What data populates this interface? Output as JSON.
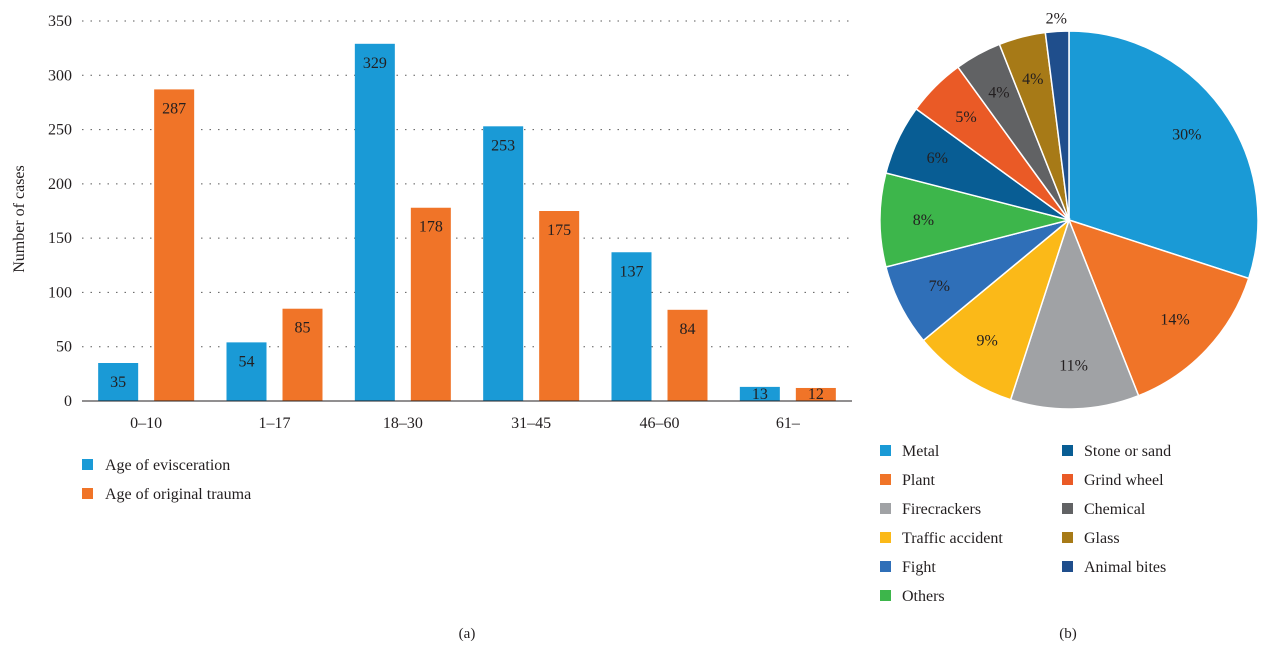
{
  "chart_data": [
    {
      "type": "bar",
      "panel_label": "(a)",
      "ylabel": "Number of cases",
      "xlabel": "",
      "ylim": [
        0,
        350
      ],
      "yticks": [
        0,
        50,
        100,
        150,
        200,
        250,
        300,
        350
      ],
      "grid": "horizontal dotted",
      "legend_position": "bottom-left",
      "categories": [
        "0–10",
        "1–17",
        "18–30",
        "31–45",
        "46–60",
        "61–"
      ],
      "series": [
        {
          "name": "Age of evisceration",
          "color": "#1a9ad6",
          "values": [
            35,
            54,
            329,
            253,
            137,
            13
          ]
        },
        {
          "name": "Age of original trauma",
          "color": "#f07428",
          "values": [
            287,
            85,
            178,
            175,
            84,
            12
          ]
        }
      ]
    },
    {
      "type": "pie",
      "panel_label": "(b)",
      "legend_position": "bottom",
      "slices": [
        {
          "label": "Metal",
          "value": 30,
          "text": "30%",
          "color": "#1a9ad6"
        },
        {
          "label": "Plant",
          "value": 14,
          "text": "14%",
          "color": "#f07428"
        },
        {
          "label": "Firecrackers",
          "value": 11,
          "text": "11%",
          "color": "#a0a2a5"
        },
        {
          "label": "Traffic accident",
          "value": 9,
          "text": "9%",
          "color": "#fbb918"
        },
        {
          "label": "Fight",
          "value": 7,
          "text": "7%",
          "color": "#2f6fb8"
        },
        {
          "label": "Others",
          "value": 8,
          "text": "8%",
          "color": "#3db64b"
        },
        {
          "label": "Stone or sand",
          "value": 6,
          "text": "6%",
          "color": "#085d94"
        },
        {
          "label": "Grind wheel",
          "value": 5,
          "text": "5%",
          "color": "#ea5a26"
        },
        {
          "label": "Chemical",
          "value": 4,
          "text": "4%",
          "color": "#616264"
        },
        {
          "label": "Glass",
          "value": 4,
          "text": "4%",
          "color": "#a77a17"
        },
        {
          "label": "Animal bites",
          "value": 2,
          "text": "2%",
          "color": "#1f4e8c"
        }
      ],
      "legend_columns": [
        [
          "Metal",
          "Plant",
          "Firecrackers",
          "Traffic accident",
          "Fight",
          "Others"
        ],
        [
          "Stone or sand",
          "Grind wheel",
          "Chemical",
          "Glass",
          "Animal bites"
        ]
      ]
    }
  ]
}
